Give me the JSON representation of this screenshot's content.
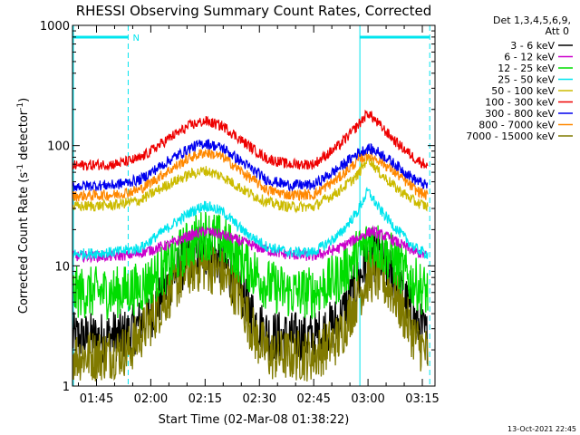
{
  "chart_data": {
    "type": "line",
    "title": "RHESSI Observing Summary Count Rates, Corrected",
    "xlabel": "Start Time (02-Mar-08 01:38:22)",
    "ylabel_parts": {
      "base": "Corrected Count Rate (s",
      "sup1": "-1",
      "mid": " detector",
      "sup2": "-1",
      "end": ")"
    },
    "timestamp": "13-Oct-2021 22:45",
    "y_scale": "log",
    "ylim": [
      1,
      1000
    ],
    "xlim_minutes": [
      98.37,
      198.5
    ],
    "x_ticks": [
      {
        "label": "01:45",
        "minute": 105
      },
      {
        "label": "02:00",
        "minute": 120
      },
      {
        "label": "02:15",
        "minute": 135
      },
      {
        "label": "02:30",
        "minute": 150
      },
      {
        "label": "02:45",
        "minute": 165
      },
      {
        "label": "03:00",
        "minute": 180
      },
      {
        "label": "03:15",
        "minute": 195
      }
    ],
    "y_ticks": [
      {
        "label": "1",
        "value": 1
      },
      {
        "label": "10",
        "value": 10
      },
      {
        "label": "100",
        "value": 100
      },
      {
        "label": "1000",
        "value": 1000
      }
    ],
    "legend": {
      "header": [
        "Det 1,3,4,5,6,9,",
        "Att 0"
      ],
      "placement": "right"
    },
    "night_intervals": [
      {
        "start": 98.37,
        "end": 114.0
      },
      {
        "start": 177.5,
        "end": 197.3
      }
    ],
    "saa_marker": {
      "label": "N",
      "minute": 114.0
    },
    "series": [
      {
        "name": "3 - 6 keV",
        "color": "#000000",
        "noise": "high",
        "points": [
          [
            98.4,
            2.5
          ],
          [
            105,
            2.5
          ],
          [
            114,
            2.7
          ],
          [
            120,
            4
          ],
          [
            126,
            8
          ],
          [
            131,
            12
          ],
          [
            135,
            13
          ],
          [
            139,
            11.5
          ],
          [
            144,
            7
          ],
          [
            149,
            3.5
          ],
          [
            153,
            2.6
          ],
          [
            165,
            2.5
          ],
          [
            172,
            3.5
          ],
          [
            177,
            7
          ],
          [
            180,
            12
          ],
          [
            183,
            12
          ],
          [
            187,
            8
          ],
          [
            193,
            3.5
          ],
          [
            196.5,
            2.5
          ]
        ]
      },
      {
        "name": "6 - 12 keV",
        "color": "#cc00cc",
        "noise": "low",
        "points": [
          [
            98.4,
            12
          ],
          [
            110,
            12
          ],
          [
            116,
            12.5
          ],
          [
            125,
            15
          ],
          [
            130,
            17.5
          ],
          [
            135,
            19.5
          ],
          [
            140,
            18
          ],
          [
            146,
            15.5
          ],
          [
            152,
            13.5
          ],
          [
            157,
            12.5
          ],
          [
            165,
            12
          ],
          [
            172,
            14
          ],
          [
            177,
            17
          ],
          [
            181,
            19.5
          ],
          [
            186,
            17
          ],
          [
            192,
            13.5
          ],
          [
            196.5,
            12
          ]
        ]
      },
      {
        "name": "12 - 25 keV",
        "color": "#00dd00",
        "noise": "high",
        "points": [
          [
            98.4,
            6
          ],
          [
            110,
            6
          ],
          [
            117,
            6.5
          ],
          [
            125,
            10
          ],
          [
            131,
            15.5
          ],
          [
            135,
            18.5
          ],
          [
            140,
            16
          ],
          [
            146,
            10.5
          ],
          [
            152,
            7
          ],
          [
            158,
            6
          ],
          [
            165,
            6
          ],
          [
            172,
            8
          ],
          [
            177,
            12.5
          ],
          [
            181,
            16
          ],
          [
            186,
            12
          ],
          [
            192,
            7.5
          ],
          [
            196.5,
            6
          ]
        ]
      },
      {
        "name": "25 - 50 keV",
        "color": "#00e5ee",
        "noise": "low",
        "points": [
          [
            98.4,
            12.5
          ],
          [
            110,
            13
          ],
          [
            117,
            14
          ],
          [
            125,
            21
          ],
          [
            131,
            28
          ],
          [
            135,
            32
          ],
          [
            140,
            28
          ],
          [
            146,
            19
          ],
          [
            152,
            14.5
          ],
          [
            158,
            13
          ],
          [
            165,
            13
          ],
          [
            172,
            18
          ],
          [
            177,
            28
          ],
          [
            180,
            42
          ],
          [
            183,
            30
          ],
          [
            188,
            20
          ],
          [
            193,
            14
          ],
          [
            196.5,
            12.5
          ]
        ]
      },
      {
        "name": "50 - 100 keV",
        "color": "#ccbb00",
        "noise": "low",
        "points": [
          [
            98.4,
            31
          ],
          [
            110,
            32
          ],
          [
            117,
            35
          ],
          [
            125,
            48
          ],
          [
            131,
            58
          ],
          [
            135,
            62
          ],
          [
            140,
            55
          ],
          [
            146,
            42
          ],
          [
            152,
            34
          ],
          [
            158,
            31
          ],
          [
            165,
            31
          ],
          [
            172,
            42
          ],
          [
            177,
            56
          ],
          [
            180,
            80
          ],
          [
            183,
            60
          ],
          [
            188,
            44
          ],
          [
            193,
            34
          ],
          [
            196.5,
            31
          ]
        ]
      },
      {
        "name": "100 - 300 keV",
        "color": "#ee0000",
        "noise": "low",
        "points": [
          [
            98.4,
            68
          ],
          [
            110,
            70
          ],
          [
            117,
            78
          ],
          [
            125,
            115
          ],
          [
            131,
            148
          ],
          [
            135,
            160
          ],
          [
            140,
            145
          ],
          [
            146,
            105
          ],
          [
            152,
            78
          ],
          [
            158,
            70
          ],
          [
            165,
            70
          ],
          [
            172,
            100
          ],
          [
            177,
            145
          ],
          [
            180,
            188
          ],
          [
            183,
            150
          ],
          [
            188,
            105
          ],
          [
            193,
            78
          ],
          [
            196.5,
            68
          ]
        ]
      },
      {
        "name": "300 - 800 keV",
        "color": "#0000ee",
        "noise": "low",
        "points": [
          [
            98.4,
            46
          ],
          [
            110,
            47
          ],
          [
            117,
            52
          ],
          [
            125,
            75
          ],
          [
            131,
            96
          ],
          [
            135,
            105
          ],
          [
            140,
            95
          ],
          [
            146,
            70
          ],
          [
            152,
            52
          ],
          [
            158,
            47
          ],
          [
            165,
            47
          ],
          [
            172,
            65
          ],
          [
            177,
            86
          ],
          [
            180,
            95
          ],
          [
            183,
            88
          ],
          [
            188,
            68
          ],
          [
            193,
            52
          ],
          [
            196.5,
            46
          ]
        ]
      },
      {
        "name": "800 - 7000 keV",
        "color": "#ff8800",
        "noise": "low",
        "points": [
          [
            98.4,
            38
          ],
          [
            110,
            39
          ],
          [
            117,
            43
          ],
          [
            125,
            62
          ],
          [
            131,
            80
          ],
          [
            135,
            88
          ],
          [
            140,
            80
          ],
          [
            146,
            58
          ],
          [
            152,
            43
          ],
          [
            158,
            39
          ],
          [
            165,
            39
          ],
          [
            172,
            54
          ],
          [
            177,
            74
          ],
          [
            180,
            84
          ],
          [
            183,
            76
          ],
          [
            188,
            58
          ],
          [
            193,
            43
          ],
          [
            196.5,
            38
          ]
        ]
      },
      {
        "name": "7000 - 15000 keV",
        "color": "#807a00",
        "noise": "high",
        "points": [
          [
            98.4,
            1.8
          ],
          [
            106,
            1.8
          ],
          [
            114,
            2
          ],
          [
            120,
            3.5
          ],
          [
            126,
            6.5
          ],
          [
            131,
            9.5
          ],
          [
            135,
            10
          ],
          [
            139,
            9
          ],
          [
            144,
            6
          ],
          [
            149,
            2.5
          ],
          [
            153,
            1.8
          ],
          [
            165,
            1.8
          ],
          [
            172,
            2.5
          ],
          [
            177,
            5.5
          ],
          [
            180,
            8
          ],
          [
            183,
            8
          ],
          [
            187,
            6
          ],
          [
            193,
            2.5
          ],
          [
            196.5,
            1.8
          ]
        ]
      }
    ],
    "colors": {
      "night_band": "#00e5ee",
      "axes": "#000000"
    }
  }
}
